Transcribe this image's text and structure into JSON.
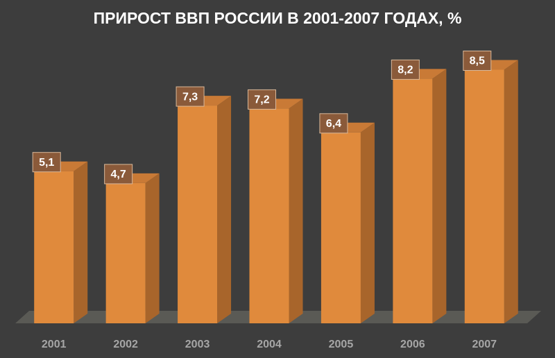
{
  "chart_data": {
    "type": "bar",
    "title": "ПРИРОСТ ВВП РОССИИ В 2001-2007 ГОДАХ, %",
    "categories": [
      "2001",
      "2002",
      "2003",
      "2004",
      "2005",
      "2006",
      "2007"
    ],
    "values": [
      5.1,
      4.7,
      7.3,
      7.2,
      6.4,
      8.2,
      8.5
    ],
    "value_labels": [
      "5,1",
      "4,7",
      "7,3",
      "7,2",
      "6,4",
      "8,2",
      "8,5"
    ],
    "color": "#e08a3c",
    "ylim": [
      0,
      10
    ]
  }
}
